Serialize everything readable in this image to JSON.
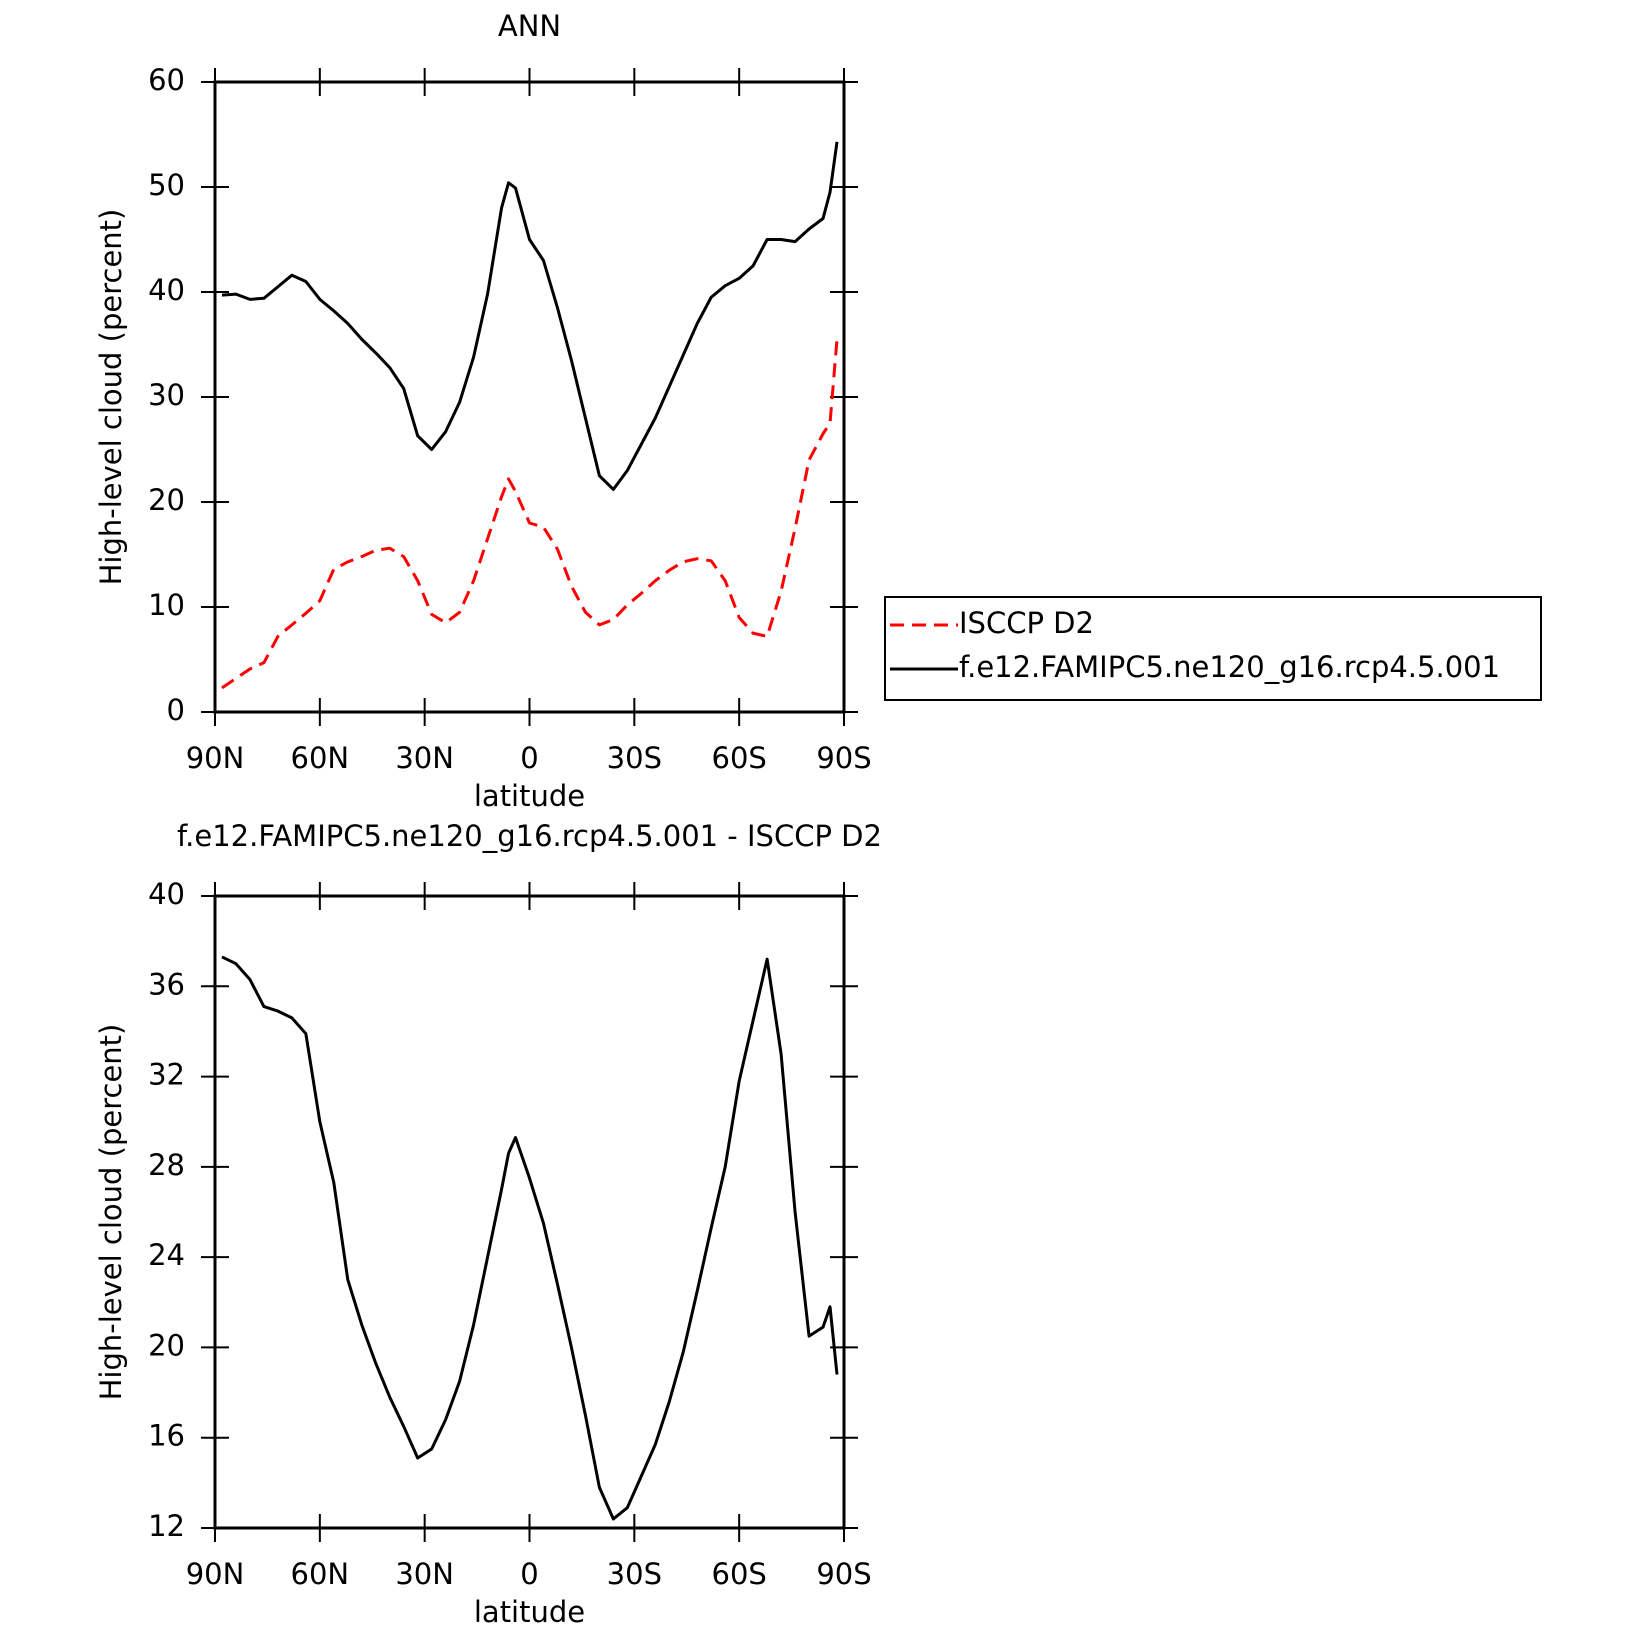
{
  "chart_data": [
    {
      "type": "line",
      "title": "ANN",
      "xlabel": "latitude",
      "ylabel": "High-level cloud (percent)",
      "x": [
        88,
        84,
        80,
        76,
        72,
        68,
        64,
        60,
        56,
        52,
        48,
        44,
        40,
        36,
        32,
        28,
        24,
        20,
        16,
        12,
        8,
        6,
        4,
        0,
        -4,
        -8,
        -12,
        -16,
        -20,
        -24,
        -28,
        -32,
        -36,
        -40,
        -44,
        -48,
        -52,
        -56,
        -60,
        -64,
        -68,
        -72,
        -76,
        -80,
        -84,
        -86,
        -88
      ],
      "xlim": [
        90,
        -90
      ],
      "xticks": [
        {
          "value": 90,
          "label": "90N"
        },
        {
          "value": 60,
          "label": "60N"
        },
        {
          "value": 30,
          "label": "30N"
        },
        0,
        {
          "value": -30,
          "label": "30S"
        },
        {
          "value": -60,
          "label": "60S"
        },
        {
          "value": -90,
          "label": "90S"
        }
      ],
      "ylim": [
        0,
        60
      ],
      "yticks": [
        0,
        10,
        20,
        30,
        40,
        50,
        60
      ],
      "legend": "outside-right",
      "series": [
        {
          "name": "ISCCP D2",
          "color": "#ff0000",
          "style": "dashed",
          "values": [
            2.3,
            3.2,
            4.1,
            4.7,
            7.2,
            8.3,
            9.4,
            10.6,
            13.6,
            14.3,
            14.8,
            15.4,
            15.6,
            14.8,
            12.5,
            9.3,
            8.5,
            9.5,
            12.5,
            16.5,
            20.5,
            22.2,
            21,
            18.0,
            17.6,
            15.5,
            12.0,
            9.5,
            8.3,
            8.8,
            10.2,
            11.3,
            12.5,
            13.5,
            14.3,
            14.6,
            14.4,
            12.5,
            9.0,
            7.5,
            7.2,
            11.5,
            17.5,
            24.0,
            26.5,
            27.5,
            35.5
          ]
        },
        {
          "name": "f.e12.FAMIPC5.ne120_g16.rcp4.5.001",
          "color": "#000000",
          "style": "solid",
          "values": [
            39.7,
            39.8,
            39.3,
            39.4,
            40.5,
            41.6,
            41.0,
            39.3,
            38.2,
            37.0,
            35.5,
            34.2,
            32.8,
            30.8,
            26.3,
            25.0,
            26.7,
            29.5,
            33.8,
            39.8,
            48.0,
            50.4,
            49.9,
            45.0,
            43.0,
            38.5,
            33.5,
            28.0,
            22.5,
            21.2,
            23.0,
            25.5,
            28.0,
            31.0,
            34.0,
            37.0,
            39.5,
            40.6,
            41.3,
            42.5,
            45.0,
            45.0,
            44.8,
            46.0,
            47.0,
            49.5,
            54.3
          ]
        }
      ]
    },
    {
      "type": "line",
      "title": "f.e12.FAMIPC5.ne120_g16.rcp4.5.001 - ISCCP D2",
      "xlabel": "latitude",
      "ylabel": "High-level cloud (percent)",
      "x": [
        88,
        84,
        80,
        76,
        72,
        68,
        64,
        60,
        56,
        52,
        48,
        44,
        40,
        36,
        32,
        28,
        24,
        20,
        16,
        12,
        8,
        6,
        4,
        0,
        -4,
        -8,
        -12,
        -16,
        -20,
        -24,
        -28,
        -32,
        -36,
        -40,
        -44,
        -48,
        -52,
        -56,
        -60,
        -64,
        -68,
        -72,
        -76,
        -80,
        -84,
        -86,
        -88
      ],
      "xlim": [
        90,
        -90
      ],
      "xticks": [
        {
          "value": 90,
          "label": "90N"
        },
        {
          "value": 60,
          "label": "60N"
        },
        {
          "value": 30,
          "label": "30N"
        },
        0,
        {
          "value": -30,
          "label": "30S"
        },
        {
          "value": -60,
          "label": "60S"
        },
        {
          "value": -90,
          "label": "90S"
        }
      ],
      "ylim": [
        12,
        40
      ],
      "yticks": [
        12,
        16,
        20,
        24,
        28,
        32,
        36,
        40
      ],
      "series": [
        {
          "color": "#000000",
          "style": "solid",
          "values": [
            37.3,
            37.0,
            36.3,
            35.1,
            34.9,
            34.6,
            33.9,
            30.0,
            27.3,
            23.0,
            21.0,
            19.3,
            17.8,
            16.5,
            15.1,
            15.5,
            16.8,
            18.5,
            21.0,
            24.0,
            27.0,
            28.6,
            29.3,
            27.5,
            25.5,
            22.8,
            20.0,
            17.0,
            13.8,
            12.4,
            12.9,
            14.3,
            15.7,
            17.6,
            19.8,
            22.5,
            25.3,
            28.0,
            31.8,
            34.5,
            37.2,
            33.0,
            26.0,
            20.5,
            20.9,
            21.8,
            18.8
          ]
        }
      ]
    }
  ]
}
